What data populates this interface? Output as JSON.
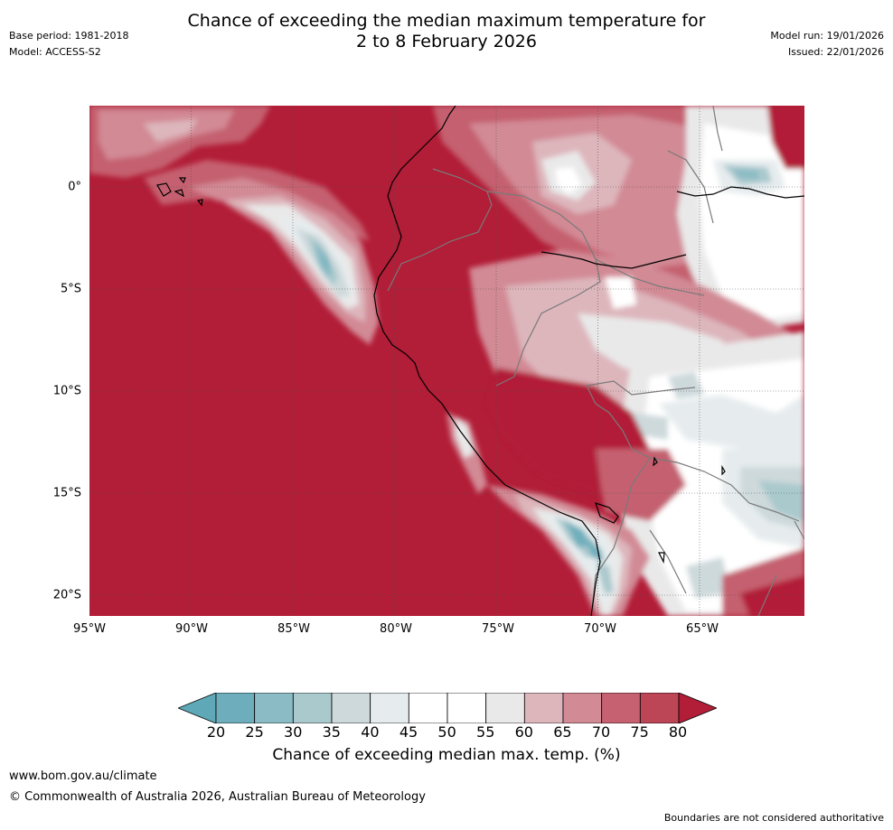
{
  "header": {
    "base_period": "Base period: 1981-2018",
    "model": "Model: ACCESS-S2",
    "title_line1": "Chance of exceeding the median maximum temperature for",
    "title_line2": "2 to 8 February 2026",
    "model_run": "Model run: 19/01/2026",
    "issued": "Issued: 22/01/2026"
  },
  "map": {
    "lat_labels": [
      "0°",
      "5°S",
      "10°S",
      "15°S",
      "20°S"
    ],
    "lon_labels": [
      "95°W",
      "90°W",
      "85°W",
      "80°W",
      "75°W",
      "70°W",
      "65°W"
    ],
    "lat_values": [
      0,
      -5,
      -10,
      -15,
      -20
    ],
    "lon_values": [
      -95,
      -90,
      -85,
      -80,
      -75,
      -70,
      -65
    ],
    "lon_range": [
      -95,
      -59.8
    ],
    "lat_range": [
      4,
      -21.1
    ]
  },
  "legend": {
    "title": "Chance of exceeding median max. temp. (%)",
    "tick_labels": [
      "20",
      "25",
      "30",
      "35",
      "40",
      "45",
      "50",
      "55",
      "60",
      "65",
      "70",
      "75",
      "80"
    ],
    "colors": [
      "#5fa8b7",
      "#6eaebc",
      "#8bbbc5",
      "#aac9cd",
      "#cdd9db",
      "#e6ecee",
      "#ffffff",
      "#ffffff",
      "#e9e9e9",
      "#ddb6bc",
      "#d28a95",
      "#c56170",
      "#bc4556",
      "#b21d37"
    ]
  },
  "footer": {
    "url": "www.bom.gov.au/climate",
    "copyright": "© Commonwealth of Australia 2026, Australian Bureau of Meteorology",
    "disclaimer": "Boundaries are not considered authoritative"
  }
}
